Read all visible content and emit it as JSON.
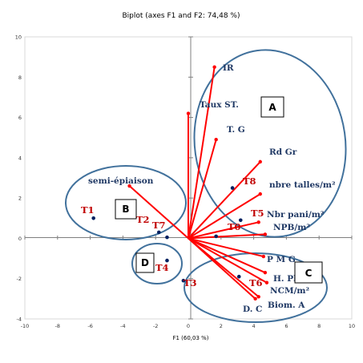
{
  "chart_data": {
    "type": "scatter",
    "title": "Biplot (axes F1 and F2: 74,48 %)",
    "xlabel": "F1 (60,03 %)",
    "ylabel": "",
    "xlim": [
      -10,
      10
    ],
    "ylim": [
      -4,
      10
    ],
    "x_ticks": [
      "-10",
      "-8",
      "-6",
      "-4",
      "-2",
      "0",
      "2",
      "4",
      "6",
      "8",
      "10"
    ],
    "y_ticks": [
      "-4",
      "-2",
      "0",
      "2",
      "4",
      "6",
      "8",
      "10"
    ],
    "grid": false,
    "colors": {
      "variables": "#ff0000",
      "observations": "#002060",
      "groups": "#41719c"
    },
    "variables": [
      {
        "name": "IR",
        "x": 1.6,
        "y": 8.5
      },
      {
        "name": "Taux ST.",
        "x": 0.0,
        "y": 6.2
      },
      {
        "name": "T. G",
        "x": 1.7,
        "y": 4.9
      },
      {
        "name": "Rd Gr",
        "x": 4.4,
        "y": 3.8
      },
      {
        "name": "nbre talles/m²",
        "x": 4.4,
        "y": 2.2
      },
      {
        "name": "Nbr pani/m²",
        "x": 4.3,
        "y": 0.8
      },
      {
        "name": "NPB/m²",
        "x": 4.7,
        "y": 0.2
      },
      {
        "name": "P M G",
        "x": 4.6,
        "y": -0.9
      },
      {
        "name": "H. Pl",
        "x": 4.7,
        "y": -1.7
      },
      {
        "name": "NCM/m²",
        "x": 4.8,
        "y": -2.2
      },
      {
        "name": "Biom. A",
        "x": 4.3,
        "y": -2.9
      },
      {
        "name": "D. C",
        "x": 4.1,
        "y": -3.0
      },
      {
        "name": "semi-épiaison",
        "x": -3.6,
        "y": 2.6
      }
    ],
    "observations": [
      {
        "name": "T1",
        "x": -5.8,
        "y": 1.0
      },
      {
        "name": "T2",
        "x": -1.8,
        "y": 0.3
      },
      {
        "name": "T7",
        "x": -1.3,
        "y": 0.05
      },
      {
        "name": "T4",
        "x": -1.3,
        "y": -1.1
      },
      {
        "name": "T3",
        "x": -0.3,
        "y": -2.1
      },
      {
        "name": "T8",
        "x": 2.7,
        "y": 2.5
      },
      {
        "name": "T5",
        "x": 3.2,
        "y": 0.9
      },
      {
        "name": "T0",
        "x": 1.7,
        "y": 0.1
      },
      {
        "name": "T6",
        "x": 3.1,
        "y": -1.9
      }
    ],
    "groups": [
      "A",
      "B",
      "C",
      "D"
    ]
  }
}
